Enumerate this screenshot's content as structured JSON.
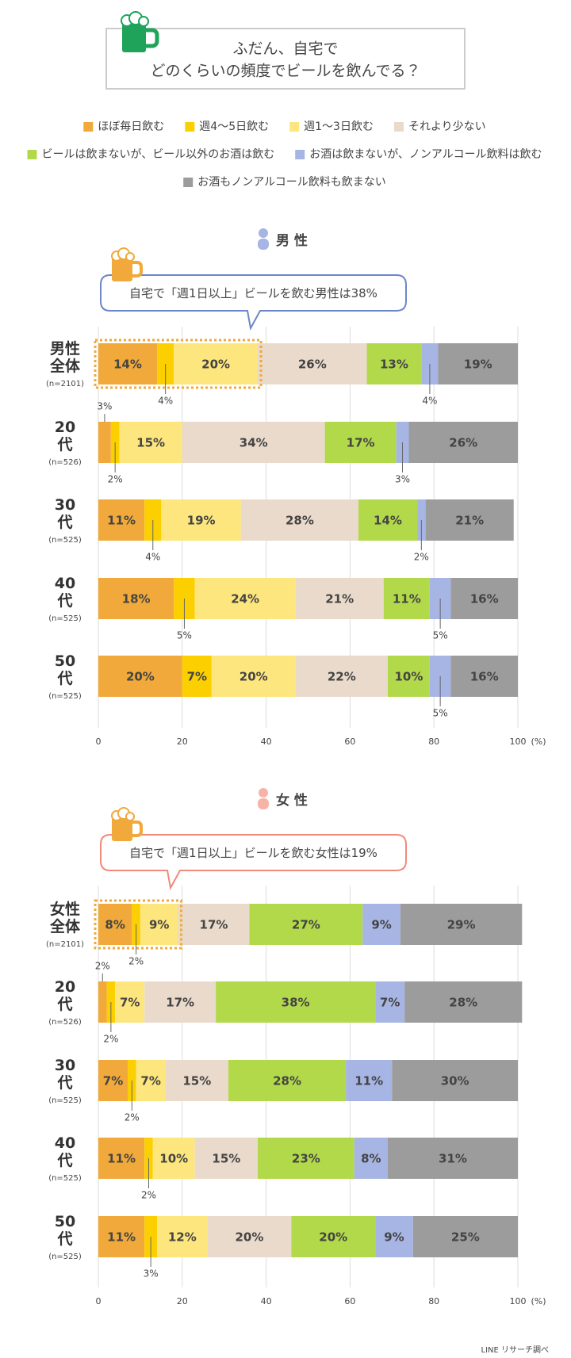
{
  "title_lines": [
    "ふだん、自宅で",
    "どのくらいの頻度でビールを飲んでる？"
  ],
  "source": "LINE リサーチ調べ",
  "chart_data": [
    {
      "type": "bar",
      "orientation": "horizontal",
      "stacked": true,
      "heading": "男 性",
      "callout": "自宅で「週1日以上」ビールを飲む男性は38%",
      "categories": [
        "男性全体",
        "20代",
        "30代",
        "40代",
        "50代"
      ],
      "sample_sizes": [
        "(n=2101)",
        "(n=526)",
        "(n=525)",
        "(n=525)",
        "(n=525)"
      ],
      "xlim": [
        0,
        100
      ],
      "xticks": [
        0,
        20,
        40,
        60,
        80,
        100
      ],
      "x_unit": "(%)",
      "grid": true,
      "series": [
        {
          "name": "ほぼ毎日飲む",
          "color": "#f0a93a",
          "label_color": "#ffffff",
          "values": [
            14,
            3,
            11,
            18,
            20
          ],
          "value_labels": [
            "14%",
            "3%",
            "11%",
            "18%",
            "20%"
          ]
        },
        {
          "name": "週4〜5日飲む",
          "color": "#fccf00",
          "label_color": "#666666",
          "values": [
            4,
            2,
            4,
            5,
            7
          ],
          "value_labels": [
            "4%",
            "2%",
            "4%",
            "5%",
            "7%"
          ]
        },
        {
          "name": "週1〜3日飲む",
          "color": "#fde67e",
          "label_color": "#666666",
          "values": [
            20,
            15,
            19,
            24,
            20
          ],
          "value_labels": [
            "20%",
            "15%",
            "19%",
            "24%",
            "20%"
          ]
        },
        {
          "name": "それより少ない",
          "color": "#eadacb",
          "label_color": "#666666",
          "values": [
            26,
            34,
            28,
            21,
            22
          ],
          "value_labels": [
            "26%",
            "34%",
            "28%",
            "21%",
            "22%"
          ]
        },
        {
          "name": "ビールは飲まないが、ビール以外のお酒は飲む",
          "color": "#b2d94a",
          "label_color": "#ffffff",
          "values": [
            13,
            17,
            14,
            11,
            10
          ],
          "value_labels": [
            "13%",
            "17%",
            "14%",
            "11%",
            "10%"
          ]
        },
        {
          "name": "お酒は飲まないが、ノンアルコール飲料は飲む",
          "color": "#a6b5e3",
          "label_color": "#ffffff",
          "values": [
            4,
            3,
            2,
            5,
            5
          ],
          "value_labels": [
            "4%",
            "3%",
            "2%",
            "5%",
            "5%"
          ]
        },
        {
          "name": "お酒もノンアルコール飲料も飲まない",
          "color": "#9c9c9c",
          "label_color": "#ffffff",
          "values": [
            19,
            26,
            21,
            16,
            16
          ],
          "value_labels": [
            "19%",
            "26%",
            "21%",
            "16%",
            "16%"
          ]
        }
      ]
    },
    {
      "type": "bar",
      "orientation": "horizontal",
      "stacked": true,
      "heading": "女 性",
      "callout": "自宅で「週1日以上」ビールを飲む女性は19%",
      "categories": [
        "女性全体",
        "20代",
        "30代",
        "40代",
        "50代"
      ],
      "sample_sizes": [
        "(n=2101)",
        "(n=526)",
        "(n=525)",
        "(n=525)",
        "(n=525)"
      ],
      "xlim": [
        0,
        100
      ],
      "xticks": [
        0,
        20,
        40,
        60,
        80,
        100
      ],
      "x_unit": "(%)",
      "grid": true,
      "series": [
        {
          "name": "ほぼ毎日飲む",
          "color": "#f0a93a",
          "label_color": "#ffffff",
          "values": [
            8,
            2,
            7,
            11,
            11
          ],
          "value_labels": [
            "8%",
            "2%",
            "7%",
            "11%",
            "11%"
          ]
        },
        {
          "name": "週4〜5日飲む",
          "color": "#fccf00",
          "label_color": "#666666",
          "values": [
            2,
            2,
            2,
            2,
            3
          ],
          "value_labels": [
            "2%",
            "2%",
            "2%",
            "2%",
            "3%"
          ]
        },
        {
          "name": "週1〜3日飲む",
          "color": "#fde67e",
          "label_color": "#666666",
          "values": [
            9,
            7,
            7,
            10,
            12
          ],
          "value_labels": [
            "9%",
            "7%",
            "7%",
            "10%",
            "12%"
          ]
        },
        {
          "name": "それより少ない",
          "color": "#eadacb",
          "label_color": "#666666",
          "values": [
            17,
            17,
            15,
            15,
            20
          ],
          "value_labels": [
            "17%",
            "17%",
            "15%",
            "15%",
            "20%"
          ]
        },
        {
          "name": "ビールは飲まないが、ビール以外のお酒は飲む",
          "color": "#b2d94a",
          "label_color": "#ffffff",
          "values": [
            27,
            38,
            28,
            23,
            20
          ],
          "value_labels": [
            "27%",
            "38%",
            "28%",
            "23%",
            "20%"
          ]
        },
        {
          "name": "お酒は飲まないが、ノンアルコール飲料は飲む",
          "color": "#a6b5e3",
          "label_color": "#ffffff",
          "values": [
            9,
            7,
            11,
            8,
            9
          ],
          "value_labels": [
            "9%",
            "7%",
            "11%",
            "8%",
            "9%"
          ]
        },
        {
          "name": "お酒もノンアルコール飲料も飲まない",
          "color": "#9c9c9c",
          "label_color": "#ffffff",
          "values": [
            29,
            28,
            30,
            31,
            25
          ],
          "value_labels": [
            "29%",
            "28%",
            "30%",
            "31%",
            "25%"
          ]
        }
      ]
    }
  ]
}
